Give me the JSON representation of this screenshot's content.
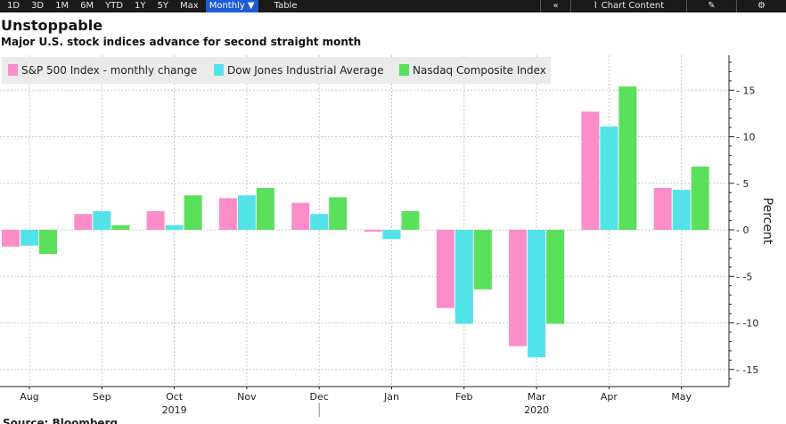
{
  "toolbar": {
    "ranges": [
      "1D",
      "3D",
      "1M",
      "6M",
      "YTD",
      "1Y",
      "5Y",
      "Max"
    ],
    "frequency": "Monthly ▼",
    "table": "Table",
    "collapse": "«",
    "chart_content": "Chart Content",
    "edit": "✎",
    "settings": "⚙"
  },
  "colors": {
    "sp500": "#fb8dc8",
    "dow": "#52e3e8",
    "nasdaq": "#5ae05a",
    "grid": "#c8c8c8",
    "toolbar_active": "#1e5bd6"
  },
  "source_text": "Source: Bloomberg",
  "chart_data": {
    "type": "bar",
    "title": "Unstoppable",
    "subtitle": "Major U.S. stock indices advance for second straight month",
    "ylabel": "Percent",
    "xlabel": "",
    "ylim": [
      -16.5,
      18
    ],
    "yticks": [
      15,
      10,
      5,
      0,
      -5,
      -10,
      -15
    ],
    "grid": true,
    "legend_position": "top-left",
    "categories": [
      "Aug",
      "Sep",
      "Oct",
      "Nov",
      "Dec",
      "Jan",
      "Feb",
      "Mar",
      "Apr",
      "May"
    ],
    "year_labels": [
      {
        "label": "2019",
        "category": "Oct"
      },
      {
        "label": "2020",
        "category": "Mar"
      }
    ],
    "year_separator_after": "Dec",
    "series": [
      {
        "name": "S&P 500 Index - monthly change",
        "color_key": "sp500",
        "values": [
          -1.8,
          1.7,
          2.0,
          3.4,
          2.9,
          -0.2,
          -8.4,
          -12.5,
          12.7,
          4.5
        ]
      },
      {
        "name": "Dow Jones Industrial Average",
        "color_key": "dow",
        "values": [
          -1.7,
          2.0,
          0.5,
          3.7,
          1.7,
          -1.0,
          -10.1,
          -13.7,
          11.1,
          4.3
        ]
      },
      {
        "name": "Nasdaq Composite Index",
        "color_key": "nasdaq",
        "values": [
          -2.6,
          0.5,
          3.7,
          4.5,
          3.5,
          2.0,
          -6.4,
          -10.1,
          15.4,
          6.8
        ]
      }
    ]
  }
}
